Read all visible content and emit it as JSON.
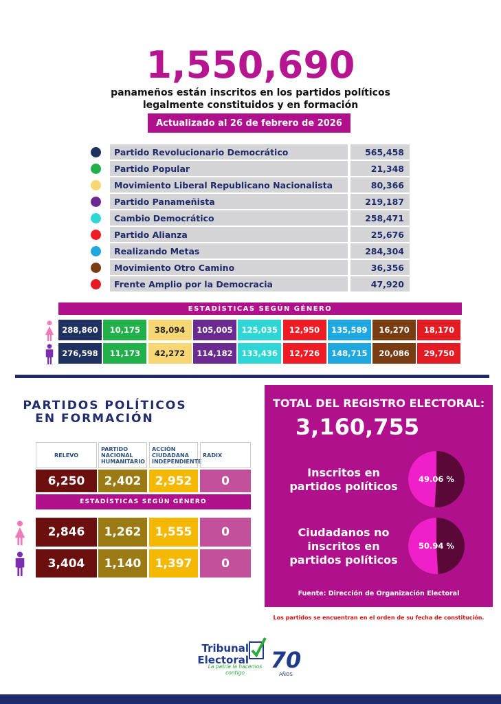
{
  "header": {
    "total": "1,550,690",
    "subtitle_1": "panameños están inscritos en los partidos políticos",
    "subtitle_2": "legalmente constituidos y en formación",
    "updated": "Actualizado al 26 de febrero de 2026"
  },
  "parties": [
    {
      "name": "Partido Revolucionario Democrático",
      "color": "#1f3160",
      "members": "565,458"
    },
    {
      "name": "Partido Popular",
      "color": "#22b04b",
      "members": "21,348"
    },
    {
      "name": "Movimiento Liberal Republicano Nacionalista",
      "color": "#f7d774",
      "members": "80,366"
    },
    {
      "name": "Partido Panameñista",
      "color": "#6b2a8f",
      "members": "219,187"
    },
    {
      "name": "Cambio Democrático",
      "color": "#2fd6d6",
      "members": "258,471"
    },
    {
      "name": "Partido Alianza",
      "color": "#ee1c24",
      "members": "25,676"
    },
    {
      "name": "Realizando Metas",
      "color": "#1fa7e0",
      "members": "284,304"
    },
    {
      "name": "Movimiento Otro Camino",
      "color": "#7a3d12",
      "members": "36,356"
    },
    {
      "name": "Frente Amplio por la Democracia",
      "color": "#e31b23",
      "members": "47,920"
    }
  ],
  "gender": {
    "title": "ESTADÍSTICAS SEGÚN GÉNERO",
    "women": [
      "288,860",
      "10,175",
      "38,094",
      "105,005",
      "125,035",
      "12,950",
      "135,589",
      "16,270",
      "18,170"
    ],
    "men": [
      "276,598",
      "11,173",
      "42,272",
      "114,182",
      "133,436",
      "12,726",
      "148,715",
      "20,086",
      "29,750"
    ]
  },
  "formation": {
    "title_1": "PARTIDOS POLÍTICOS",
    "title_2": "EN FORMACIÓN",
    "gender_title": "ESTADÍSTICAS SEGÚN GÉNERO",
    "parties": [
      {
        "name": "RELEVO",
        "color": "#6b0f0f",
        "members": "6,250",
        "women": "2,846",
        "men": "3,404"
      },
      {
        "name": "PARTIDO NACIONAL HUMANITARIO",
        "color": "#9b7a14",
        "members": "2,402",
        "women": "1,262",
        "men": "1,140"
      },
      {
        "name": "ACCIÓN CIUDADANA INDEPENDIENTE",
        "color": "#f5b800",
        "members": "2,952",
        "women": "1,555",
        "men": "1,397"
      },
      {
        "name": "RADIX",
        "color": "#c2509a",
        "members": "0",
        "women": "0",
        "men": "0"
      }
    ]
  },
  "registry": {
    "title": "TOTAL DEL REGISTRO ELECTORAL:",
    "total": "3,160,755",
    "items": [
      {
        "label": [
          "Inscritos en",
          "partidos políticos"
        ],
        "percent": 49.06,
        "percent_label": "49.06 %"
      },
      {
        "label": [
          "Ciudadanos no",
          "inscritos en",
          "partidos políticos"
        ],
        "percent": 50.94,
        "percent_label": "50.94 %"
      }
    ],
    "source": "Fuente: Dirección de Organización Electoral"
  },
  "note": "Los partidos se encuentran en el orden de su fecha de constitución.",
  "logo": {
    "name_1": "Tribunal",
    "name_2": "Electoral",
    "slogan": "La patria la hacemos contigo",
    "years": "70",
    "years_label": "AÑOS"
  }
}
